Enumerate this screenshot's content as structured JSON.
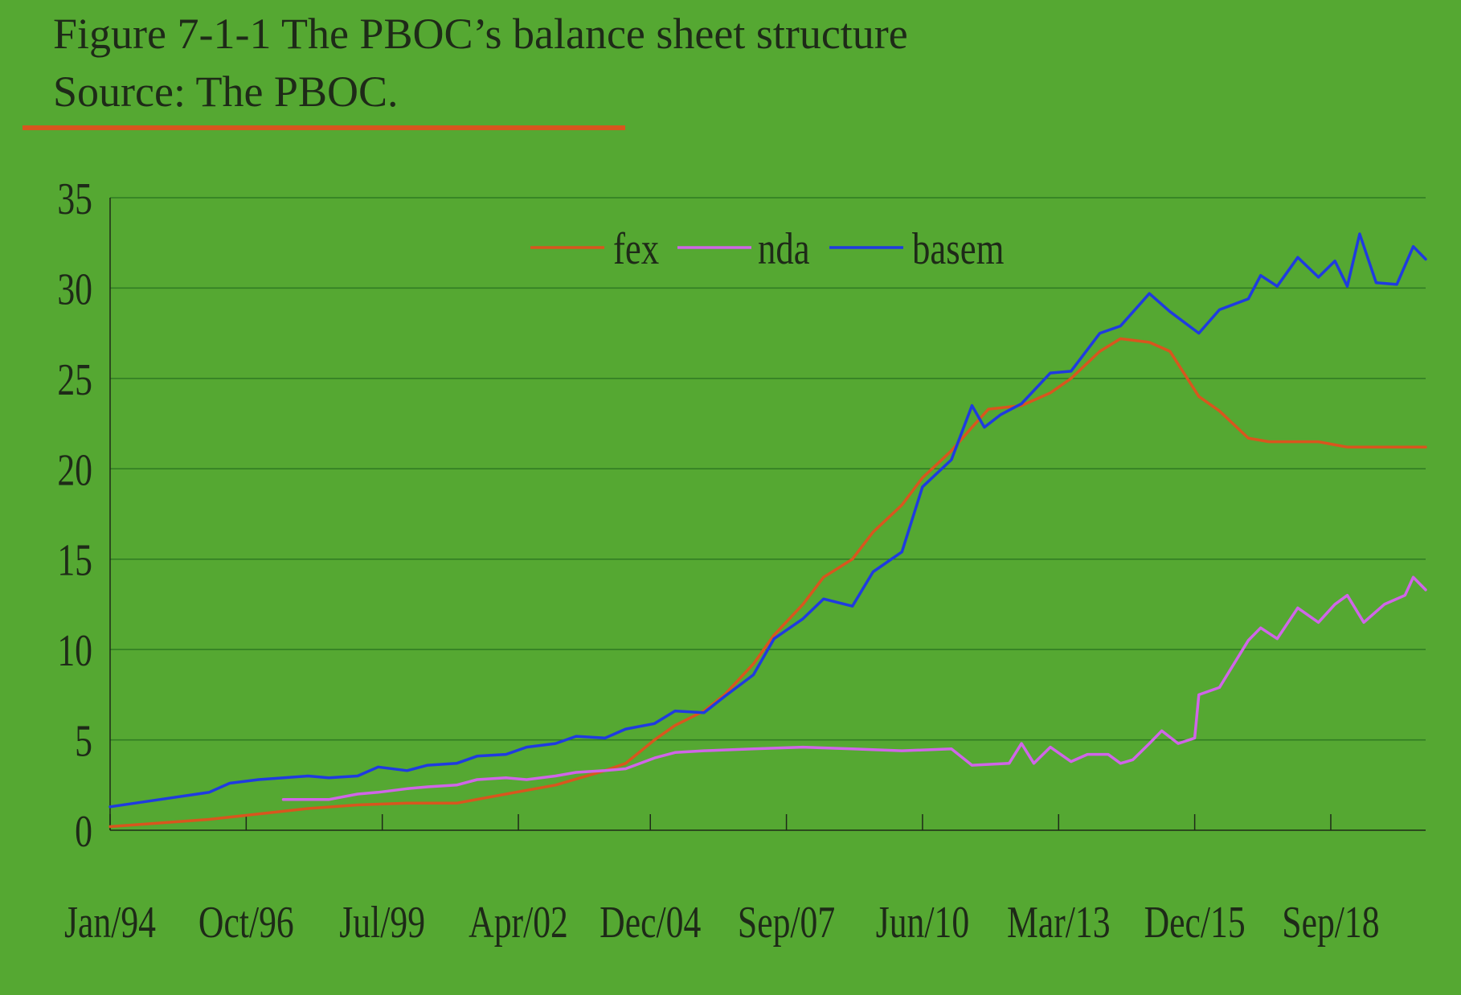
{
  "header": {
    "title": "Figure 7-1-1 The PBOC’s balance sheet structure",
    "source": "Source: The PBOC."
  },
  "colors": {
    "background": "#55a832",
    "fex": "#d8561e",
    "nda": "#d066e8",
    "basem": "#1f3be0",
    "gridline": "#2f7a22",
    "axis": "#1e2a18",
    "title_rule": "#d8561e"
  },
  "chart_data": {
    "type": "line",
    "title": "",
    "xlabel": "",
    "ylabel": "",
    "ylim": [
      0,
      35
    ],
    "xlim": [
      "1994-01",
      "2020-08"
    ],
    "y_ticks": [
      0,
      5,
      10,
      15,
      20,
      25,
      30,
      35
    ],
    "x_ticks": [
      "Jan/94",
      "Oct/96",
      "Jul/99",
      "Apr/02",
      "Dec/04",
      "Sep/07",
      "Jun/10",
      "Mar/13",
      "Dec/15",
      "Sep/18"
    ],
    "x_tick_dates": [
      "1994-01",
      "1996-10",
      "1999-07",
      "2002-04",
      "2004-12",
      "2007-09",
      "2010-06",
      "2013-03",
      "2015-12",
      "2018-09"
    ],
    "grid": "horizontal",
    "legend": "top-center",
    "series": [
      {
        "name": "fex",
        "points": [
          [
            "1994-01",
            0.2
          ],
          [
            "1995-01",
            0.4
          ],
          [
            "1996-01",
            0.6
          ],
          [
            "1997-01",
            0.9
          ],
          [
            "1998-01",
            1.2
          ],
          [
            "1999-01",
            1.4
          ],
          [
            "2000-01",
            1.5
          ],
          [
            "2001-01",
            1.5
          ],
          [
            "2002-01",
            2.0
          ],
          [
            "2003-01",
            2.5
          ],
          [
            "2004-01",
            3.3
          ],
          [
            "2004-06",
            3.7
          ],
          [
            "2005-01",
            5.0
          ],
          [
            "2005-06",
            5.8
          ],
          [
            "2006-01",
            6.6
          ],
          [
            "2006-06",
            7.5
          ],
          [
            "2007-01",
            9.2
          ],
          [
            "2007-06",
            10.8
          ],
          [
            "2008-01",
            12.5
          ],
          [
            "2008-06",
            14.0
          ],
          [
            "2009-01",
            15.0
          ],
          [
            "2009-06",
            16.5
          ],
          [
            "2010-01",
            18.0
          ],
          [
            "2010-06",
            19.5
          ],
          [
            "2011-01",
            21.0
          ],
          [
            "2011-06",
            22.3
          ],
          [
            "2011-10",
            23.3
          ],
          [
            "2012-06",
            23.5
          ],
          [
            "2013-01",
            24.2
          ],
          [
            "2013-06",
            25.0
          ],
          [
            "2014-01",
            26.5
          ],
          [
            "2014-06",
            27.2
          ],
          [
            "2015-01",
            27.0
          ],
          [
            "2015-06",
            26.5
          ],
          [
            "2016-01",
            24.0
          ],
          [
            "2016-06",
            23.2
          ],
          [
            "2017-01",
            21.7
          ],
          [
            "2017-06",
            21.5
          ],
          [
            "2018-01",
            21.5
          ],
          [
            "2018-06",
            21.5
          ],
          [
            "2019-01",
            21.2
          ],
          [
            "2019-06",
            21.2
          ],
          [
            "2020-01",
            21.2
          ],
          [
            "2020-08",
            21.2
          ]
        ]
      },
      {
        "name": "nda",
        "points": [
          [
            "1997-07",
            1.7
          ],
          [
            "1998-06",
            1.7
          ],
          [
            "1999-01",
            2.0
          ],
          [
            "1999-06",
            2.1
          ],
          [
            "2000-01",
            2.3
          ],
          [
            "2000-06",
            2.4
          ],
          [
            "2001-01",
            2.5
          ],
          [
            "2001-06",
            2.8
          ],
          [
            "2002-01",
            2.9
          ],
          [
            "2002-06",
            2.8
          ],
          [
            "2003-01",
            3.0
          ],
          [
            "2003-06",
            3.2
          ],
          [
            "2004-01",
            3.3
          ],
          [
            "2004-06",
            3.4
          ],
          [
            "2005-01",
            4.0
          ],
          [
            "2005-06",
            4.3
          ],
          [
            "2006-01",
            4.4
          ],
          [
            "2007-01",
            4.5
          ],
          [
            "2008-01",
            4.6
          ],
          [
            "2009-01",
            4.5
          ],
          [
            "2010-01",
            4.4
          ],
          [
            "2011-01",
            4.5
          ],
          [
            "2011-06",
            3.6
          ],
          [
            "2012-03",
            3.7
          ],
          [
            "2012-06",
            4.8
          ],
          [
            "2012-09",
            3.7
          ],
          [
            "2013-01",
            4.6
          ],
          [
            "2013-06",
            3.8
          ],
          [
            "2013-10",
            4.2
          ],
          [
            "2014-03",
            4.2
          ],
          [
            "2014-06",
            3.7
          ],
          [
            "2014-09",
            3.9
          ],
          [
            "2015-01",
            4.8
          ],
          [
            "2015-04",
            5.5
          ],
          [
            "2015-08",
            4.8
          ],
          [
            "2015-12",
            5.1
          ],
          [
            "2016-01",
            7.5
          ],
          [
            "2016-06",
            7.9
          ],
          [
            "2017-01",
            10.5
          ],
          [
            "2017-04",
            11.2
          ],
          [
            "2017-08",
            10.6
          ],
          [
            "2018-01",
            12.3
          ],
          [
            "2018-06",
            11.5
          ],
          [
            "2018-10",
            12.5
          ],
          [
            "2019-01",
            13.0
          ],
          [
            "2019-05",
            11.5
          ],
          [
            "2019-10",
            12.5
          ],
          [
            "2020-03",
            13.0
          ],
          [
            "2020-05",
            14.0
          ],
          [
            "2020-08",
            13.3
          ]
        ]
      },
      {
        "name": "basem",
        "points": [
          [
            "1994-01",
            1.3
          ],
          [
            "1995-01",
            1.7
          ],
          [
            "1996-01",
            2.1
          ],
          [
            "1996-06",
            2.6
          ],
          [
            "1997-01",
            2.8
          ],
          [
            "1998-01",
            3.0
          ],
          [
            "1998-06",
            2.9
          ],
          [
            "1999-01",
            3.0
          ],
          [
            "1999-06",
            3.5
          ],
          [
            "2000-01",
            3.3
          ],
          [
            "2000-06",
            3.6
          ],
          [
            "2001-01",
            3.7
          ],
          [
            "2001-06",
            4.1
          ],
          [
            "2002-01",
            4.2
          ],
          [
            "2002-06",
            4.6
          ],
          [
            "2003-01",
            4.8
          ],
          [
            "2003-06",
            5.2
          ],
          [
            "2004-01",
            5.1
          ],
          [
            "2004-06",
            5.6
          ],
          [
            "2005-01",
            5.9
          ],
          [
            "2005-06",
            6.6
          ],
          [
            "2006-01",
            6.5
          ],
          [
            "2006-06",
            7.4
          ],
          [
            "2007-01",
            8.6
          ],
          [
            "2007-06",
            10.6
          ],
          [
            "2008-01",
            11.7
          ],
          [
            "2008-06",
            12.8
          ],
          [
            "2009-01",
            12.4
          ],
          [
            "2009-06",
            14.3
          ],
          [
            "2010-01",
            15.4
          ],
          [
            "2010-06",
            19.0
          ],
          [
            "2011-01",
            20.5
          ],
          [
            "2011-06",
            23.5
          ],
          [
            "2011-09",
            22.3
          ],
          [
            "2012-01",
            23.0
          ],
          [
            "2012-06",
            23.6
          ],
          [
            "2013-01",
            25.3
          ],
          [
            "2013-06",
            25.4
          ],
          [
            "2014-01",
            27.5
          ],
          [
            "2014-06",
            27.9
          ],
          [
            "2015-01",
            29.7
          ],
          [
            "2015-06",
            28.7
          ],
          [
            "2016-01",
            27.5
          ],
          [
            "2016-06",
            28.8
          ],
          [
            "2017-01",
            29.4
          ],
          [
            "2017-04",
            30.7
          ],
          [
            "2017-08",
            30.1
          ],
          [
            "2018-01",
            31.7
          ],
          [
            "2018-06",
            30.6
          ],
          [
            "2018-10",
            31.5
          ],
          [
            "2019-01",
            30.1
          ],
          [
            "2019-04",
            33.0
          ],
          [
            "2019-08",
            30.3
          ],
          [
            "2020-01",
            30.2
          ],
          [
            "2020-05",
            32.3
          ],
          [
            "2020-08",
            31.6
          ]
        ]
      }
    ]
  }
}
